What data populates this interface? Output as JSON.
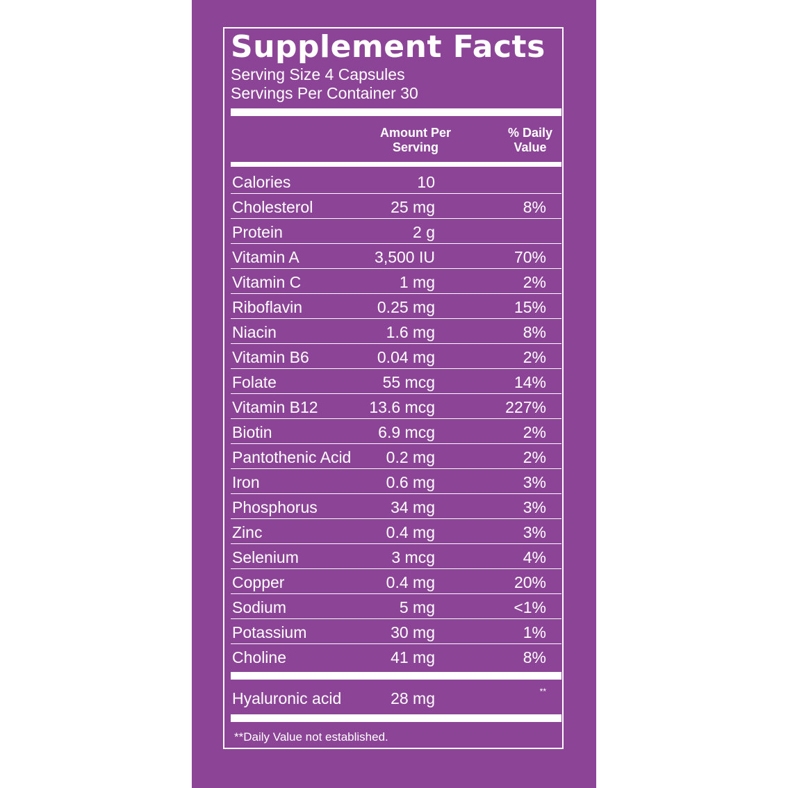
{
  "label": {
    "title": "Supplement Facts",
    "serving_size": "Serving Size 4 Capsules",
    "servings_per_container": "Servings Per Container 30",
    "headers": {
      "amount_line1": "Amount Per",
      "amount_line2": "Serving",
      "dv_line1": "% Daily",
      "dv_line2": "Value"
    },
    "nutrients": [
      {
        "name": "Calories",
        "amount": "10",
        "dv": ""
      },
      {
        "name": "Cholesterol",
        "amount": "25 mg",
        "dv": "8%"
      },
      {
        "name": "Protein",
        "amount": "2 g",
        "dv": ""
      },
      {
        "name": "Vitamin A",
        "amount": "3,500 IU",
        "dv": "70%"
      },
      {
        "name": "Vitamin C",
        "amount": "1 mg",
        "dv": "2%"
      },
      {
        "name": "Riboflavin",
        "amount": "0.25 mg",
        "dv": "15%"
      },
      {
        "name": "Niacin",
        "amount": "1.6 mg",
        "dv": "8%"
      },
      {
        "name": "Vitamin B6",
        "amount": "0.04 mg",
        "dv": "2%"
      },
      {
        "name": "Folate",
        "amount": "55 mcg",
        "dv": "14%"
      },
      {
        "name": "Vitamin B12",
        "amount": "13.6 mcg",
        "dv": "227%"
      },
      {
        "name": "Biotin",
        "amount": "6.9 mcg",
        "dv": "2%"
      },
      {
        "name": "Pantothenic Acid",
        "amount": "0.2 mg",
        "dv": "2%"
      },
      {
        "name": "Iron",
        "amount": "0.6 mg",
        "dv": "3%"
      },
      {
        "name": "Phosphorus",
        "amount": "34 mg",
        "dv": "3%"
      },
      {
        "name": "Zinc",
        "amount": "0.4 mg",
        "dv": "3%"
      },
      {
        "name": "Selenium",
        "amount": "3 mcg",
        "dv": "4%"
      },
      {
        "name": "Copper",
        "amount": "0.4 mg",
        "dv": "20%"
      },
      {
        "name": "Sodium",
        "amount": "5 mg",
        "dv": "<1%"
      },
      {
        "name": "Potassium",
        "amount": "30 mg",
        "dv": "1%"
      },
      {
        "name": "Choline",
        "amount": "41 mg",
        "dv": "8%"
      }
    ],
    "other": {
      "name": "Hyaluronic acid",
      "amount": "28 mg",
      "dv": "**"
    },
    "footnote": "**Daily Value not established."
  },
  "colors": {
    "panel_background": "#8c4596",
    "text": "#ffffff",
    "page_background": "#ffffff"
  }
}
